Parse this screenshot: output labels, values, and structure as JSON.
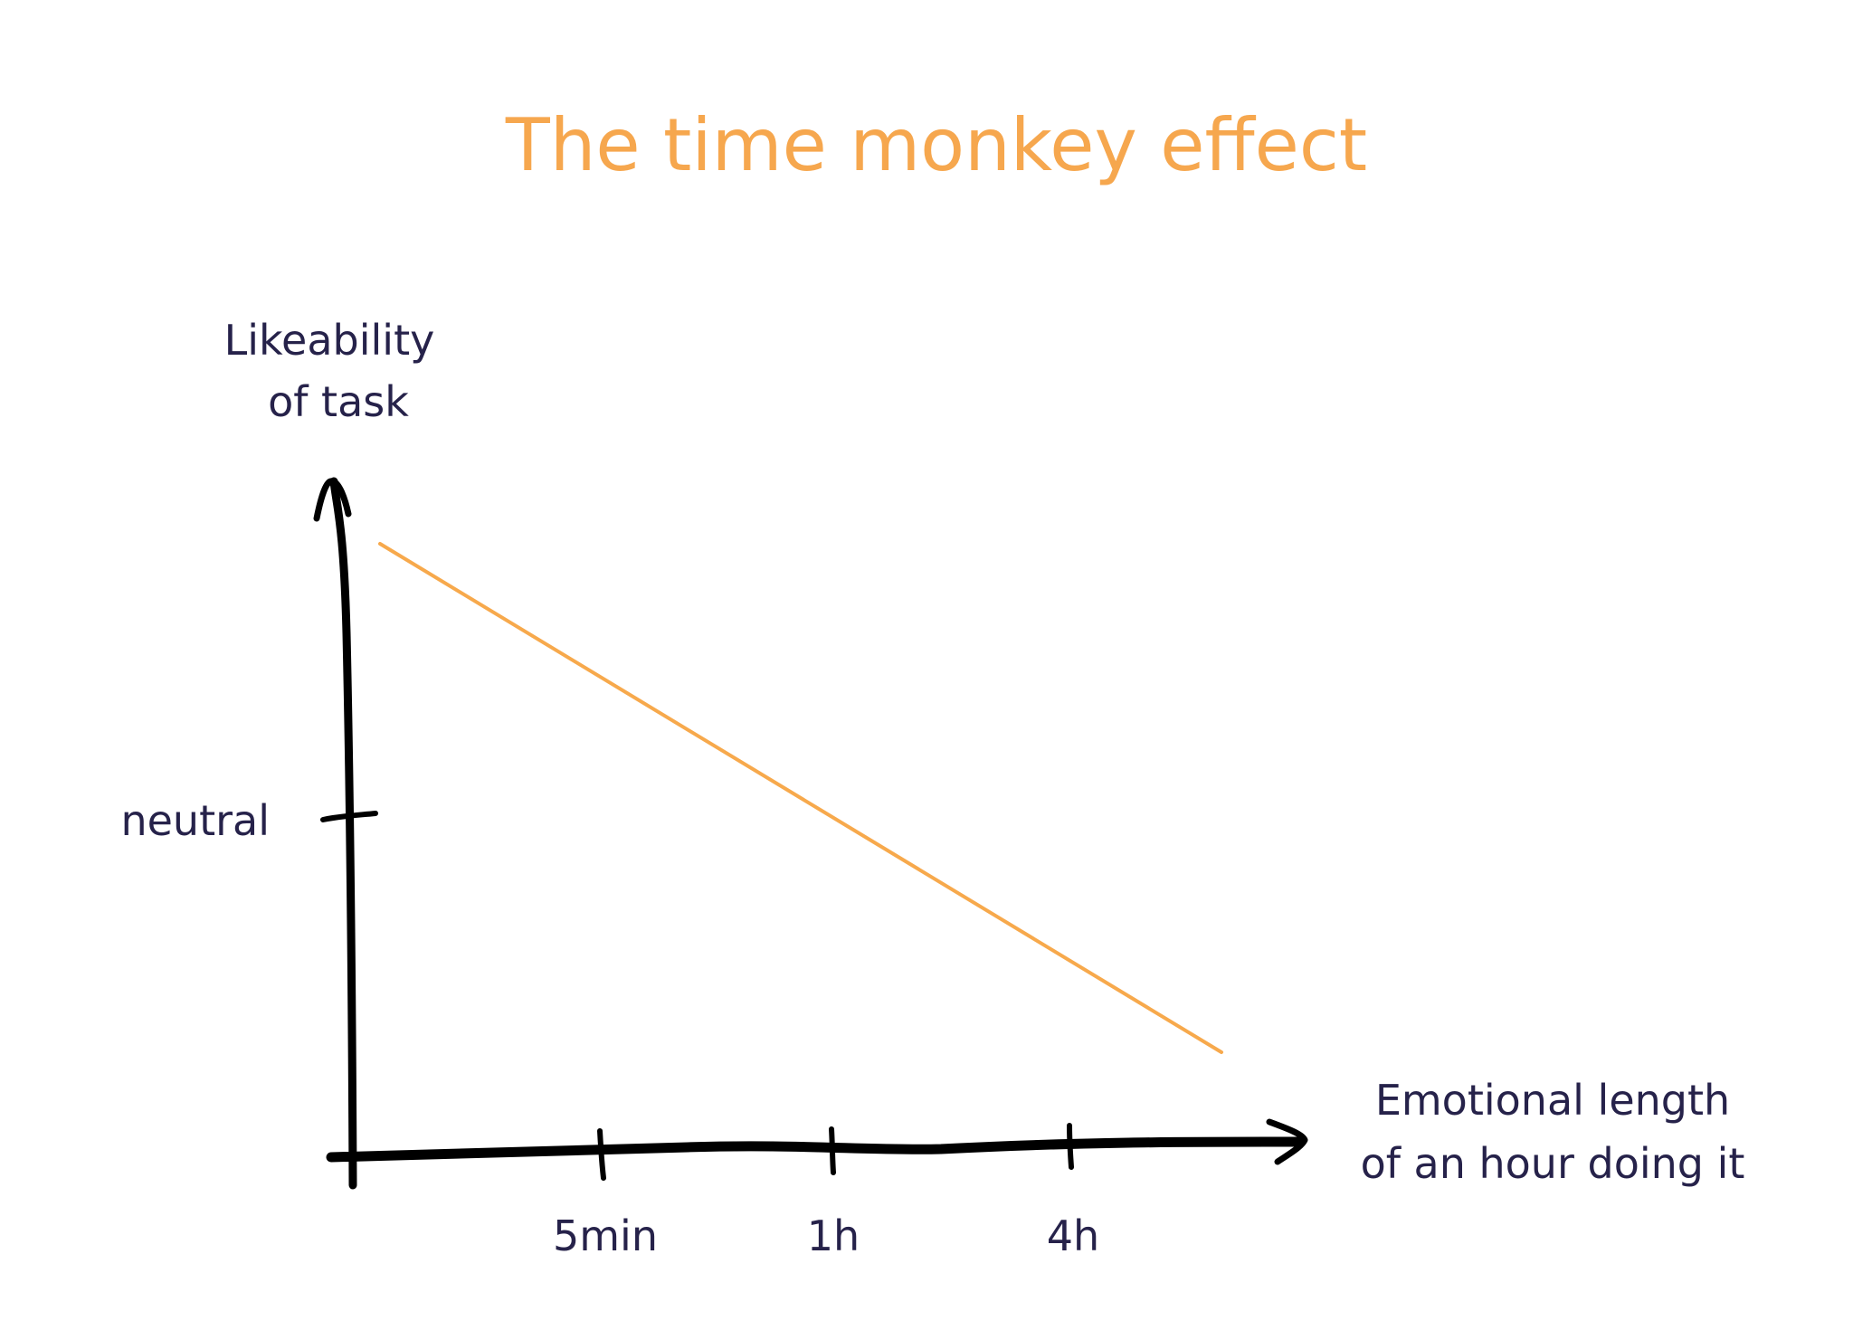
{
  "chart_data": {
    "type": "line",
    "title": "The time monkey effect",
    "ylabel": [
      "Likeability",
      "of task"
    ],
    "xlabel": [
      "Emotional length",
      "of an hour doing it"
    ],
    "x_ticks": [
      "5min",
      "1h",
      "4h"
    ],
    "y_ticks": [
      "neutral"
    ],
    "series": [
      {
        "start_like": "high",
        "end_like": "low"
      }
    ],
    "grid": false,
    "legend": "none",
    "colors": {
      "title": "#f6a74e",
      "line": "#f7a94c",
      "axis": "#000000",
      "text": "#26224a"
    }
  }
}
